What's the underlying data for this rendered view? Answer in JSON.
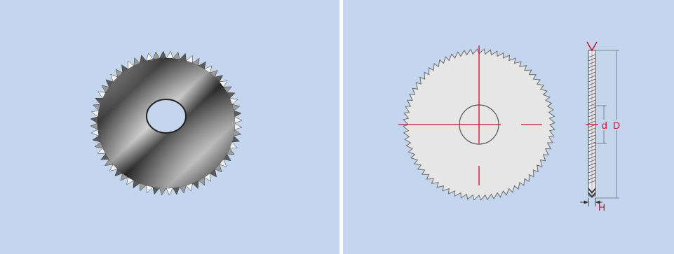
{
  "labels": {
    "inner_diameter": "d",
    "outer_diameter": "D",
    "thickness": "H"
  },
  "colors": {
    "background": "#c3d6ee",
    "divider": "#ffffff",
    "dimension_red": "#c8102e",
    "drawing_line": "#6b6b6b",
    "drawing_fill": "#e6e6e6"
  },
  "icons": [
    "saw-blade-photo",
    "saw-blade-front-view",
    "saw-blade-side-view"
  ]
}
